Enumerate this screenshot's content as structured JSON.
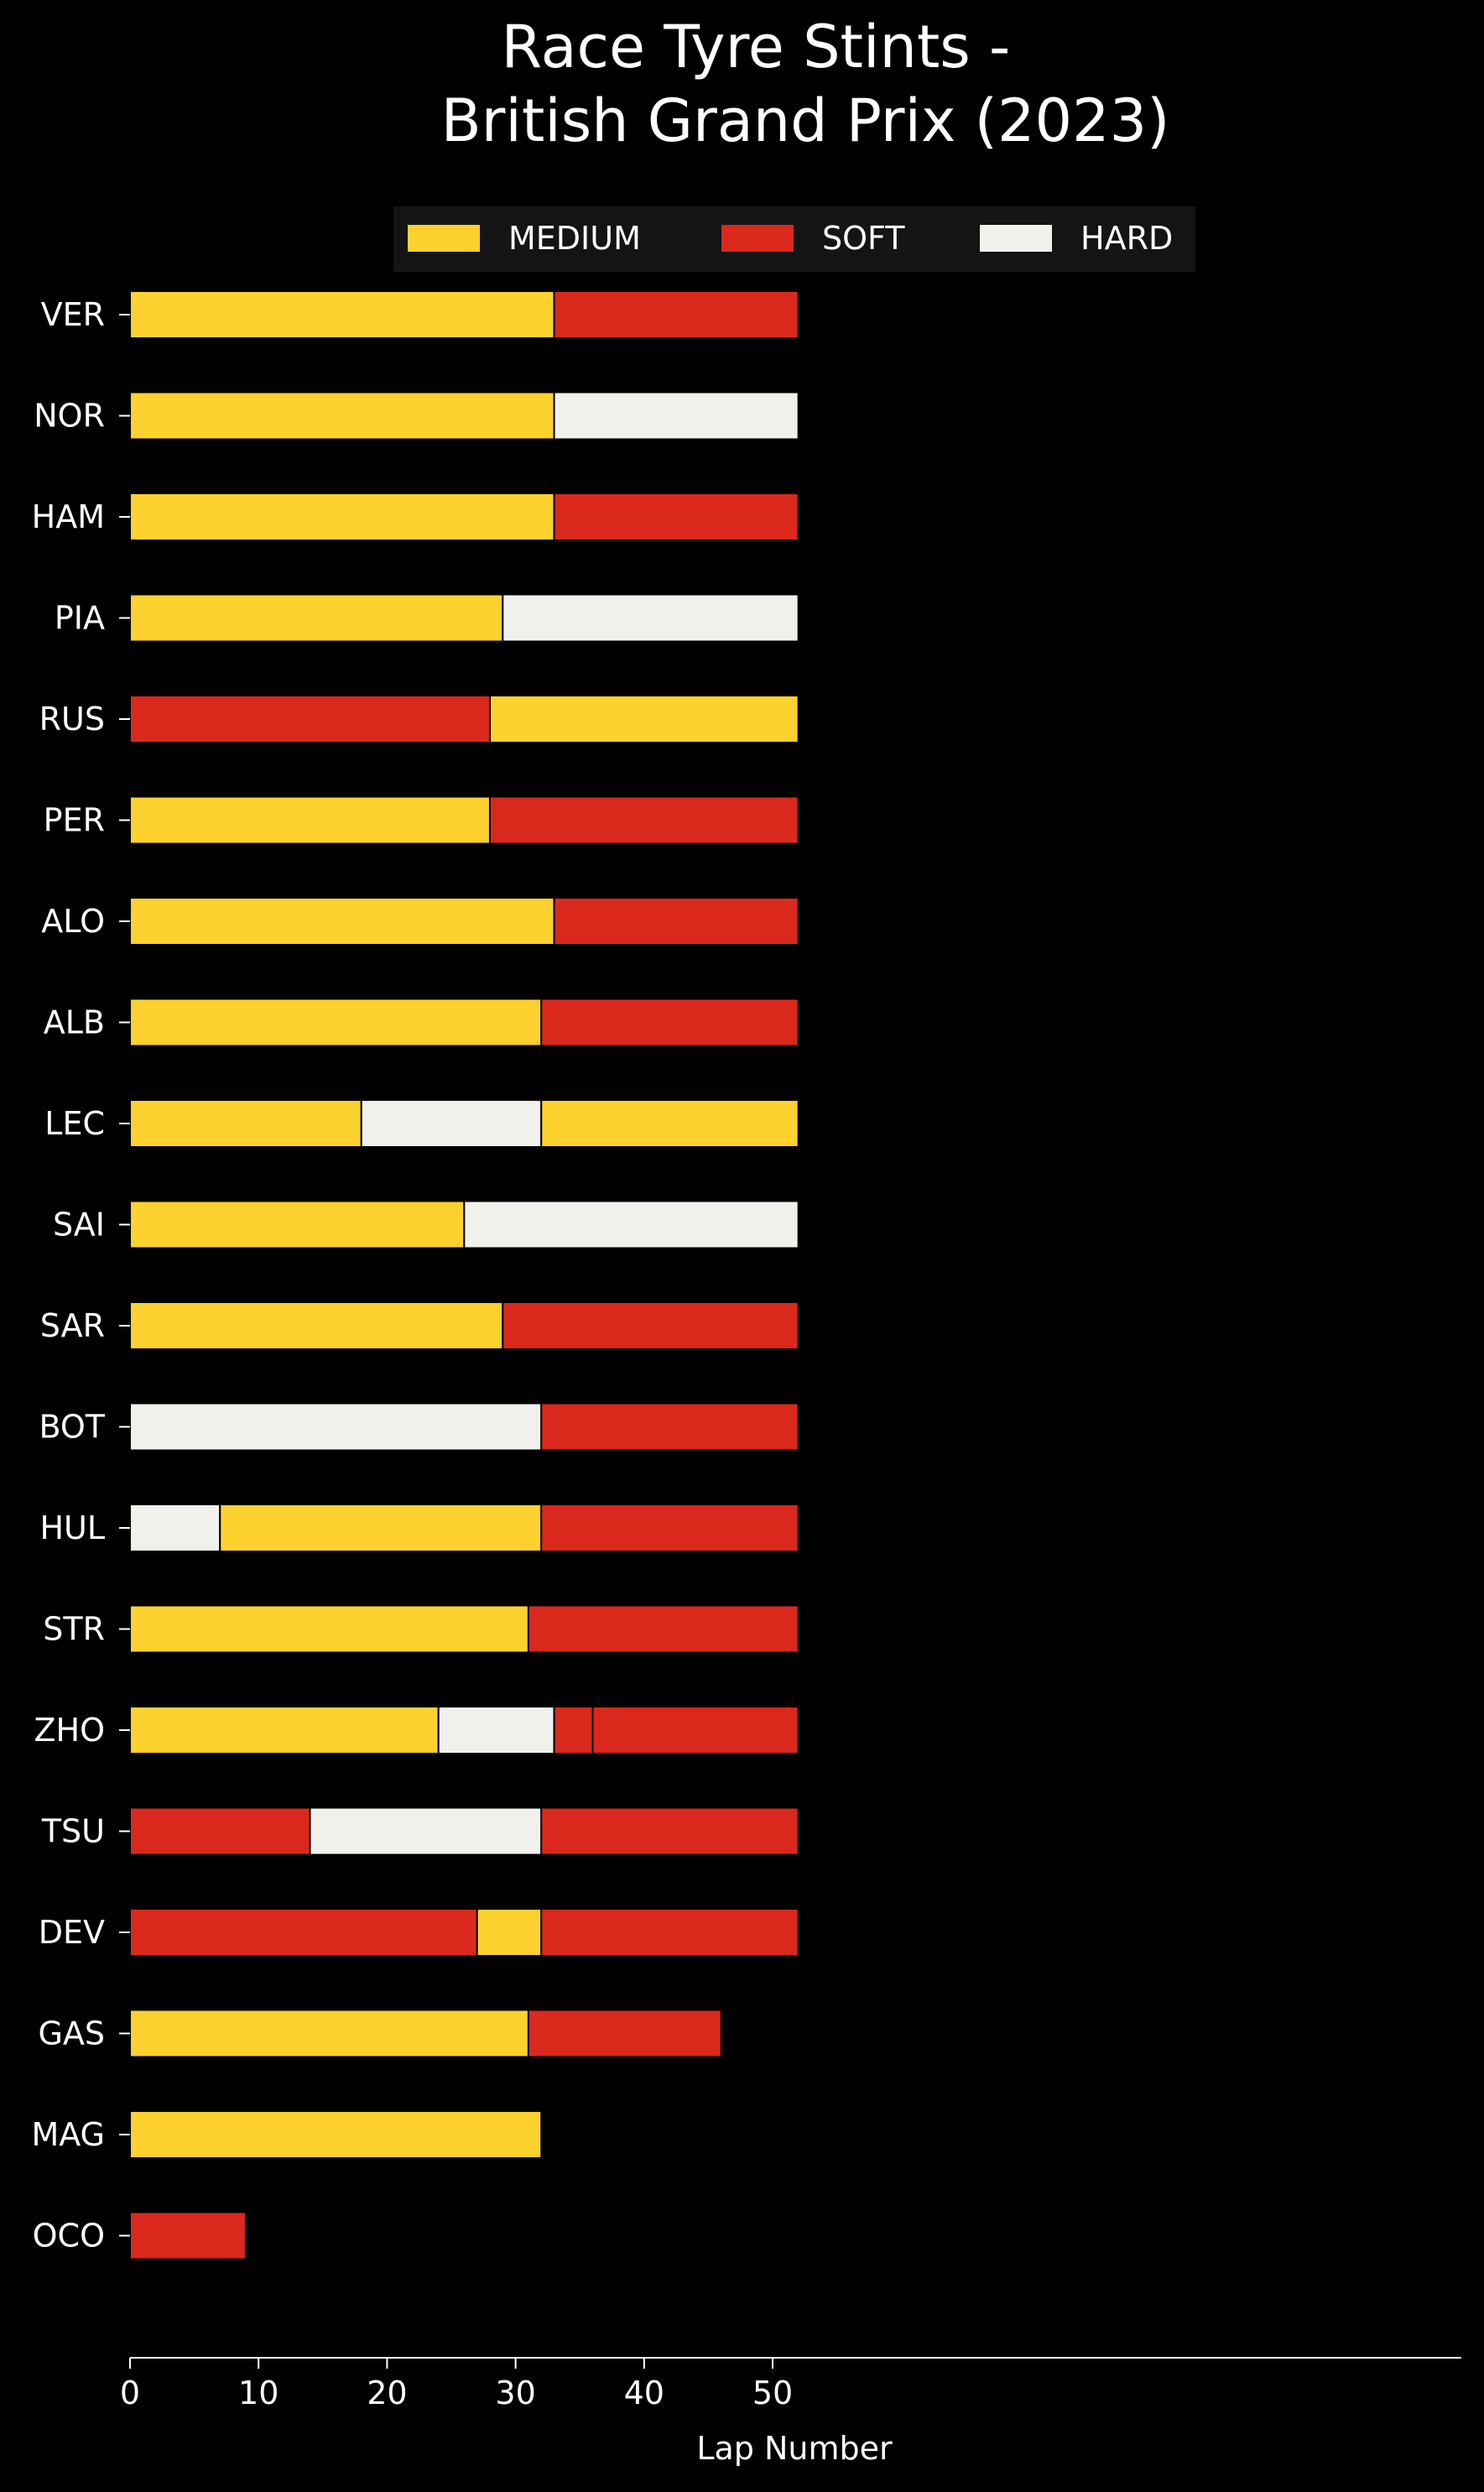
{
  "chart_data": {
    "type": "bar",
    "orientation": "horizontal",
    "stacked": true,
    "title": "Race Tyre Stints -\nBritish Grand Prix (2023)",
    "xlabel": "Lap Number",
    "ylabel": "",
    "xlim": [
      0,
      55
    ],
    "xticks": [
      0,
      10,
      20,
      30,
      40,
      50
    ],
    "grid": false,
    "legend": {
      "placement": "top-center",
      "entries": [
        "MEDIUM",
        "SOFT",
        "HARD"
      ]
    },
    "compound_colors": {
      "MEDIUM": "#fdd12e",
      "SOFT": "#da291c",
      "HARD": "#f0f0ec"
    },
    "background": "#000000",
    "drivers": [
      {
        "driver": "VER",
        "stints": [
          {
            "compound": "MEDIUM",
            "start": 0,
            "end": 33
          },
          {
            "compound": "SOFT",
            "start": 33,
            "end": 52
          }
        ]
      },
      {
        "driver": "NOR",
        "stints": [
          {
            "compound": "MEDIUM",
            "start": 0,
            "end": 33
          },
          {
            "compound": "HARD",
            "start": 33,
            "end": 52
          }
        ]
      },
      {
        "driver": "HAM",
        "stints": [
          {
            "compound": "MEDIUM",
            "start": 0,
            "end": 33
          },
          {
            "compound": "SOFT",
            "start": 33,
            "end": 52
          }
        ]
      },
      {
        "driver": "PIA",
        "stints": [
          {
            "compound": "MEDIUM",
            "start": 0,
            "end": 29
          },
          {
            "compound": "HARD",
            "start": 29,
            "end": 52
          }
        ]
      },
      {
        "driver": "RUS",
        "stints": [
          {
            "compound": "SOFT",
            "start": 0,
            "end": 28
          },
          {
            "compound": "MEDIUM",
            "start": 28,
            "end": 52
          }
        ]
      },
      {
        "driver": "PER",
        "stints": [
          {
            "compound": "MEDIUM",
            "start": 0,
            "end": 28
          },
          {
            "compound": "SOFT",
            "start": 28,
            "end": 52
          }
        ]
      },
      {
        "driver": "ALO",
        "stints": [
          {
            "compound": "MEDIUM",
            "start": 0,
            "end": 33
          },
          {
            "compound": "SOFT",
            "start": 33,
            "end": 52
          }
        ]
      },
      {
        "driver": "ALB",
        "stints": [
          {
            "compound": "MEDIUM",
            "start": 0,
            "end": 32
          },
          {
            "compound": "SOFT",
            "start": 32,
            "end": 52
          }
        ]
      },
      {
        "driver": "LEC",
        "stints": [
          {
            "compound": "MEDIUM",
            "start": 0,
            "end": 18
          },
          {
            "compound": "HARD",
            "start": 18,
            "end": 32
          },
          {
            "compound": "MEDIUM",
            "start": 32,
            "end": 52
          }
        ]
      },
      {
        "driver": "SAI",
        "stints": [
          {
            "compound": "MEDIUM",
            "start": 0,
            "end": 26
          },
          {
            "compound": "HARD",
            "start": 26,
            "end": 52
          }
        ]
      },
      {
        "driver": "SAR",
        "stints": [
          {
            "compound": "MEDIUM",
            "start": 0,
            "end": 29
          },
          {
            "compound": "SOFT",
            "start": 29,
            "end": 52
          }
        ]
      },
      {
        "driver": "BOT",
        "stints": [
          {
            "compound": "HARD",
            "start": 0,
            "end": 32
          },
          {
            "compound": "SOFT",
            "start": 32,
            "end": 52
          }
        ]
      },
      {
        "driver": "HUL",
        "stints": [
          {
            "compound": "HARD",
            "start": 0,
            "end": 7
          },
          {
            "compound": "MEDIUM",
            "start": 7,
            "end": 32
          },
          {
            "compound": "SOFT",
            "start": 32,
            "end": 52
          }
        ]
      },
      {
        "driver": "STR",
        "stints": [
          {
            "compound": "MEDIUM",
            "start": 0,
            "end": 31
          },
          {
            "compound": "SOFT",
            "start": 31,
            "end": 52
          }
        ]
      },
      {
        "driver": "ZHO",
        "stints": [
          {
            "compound": "MEDIUM",
            "start": 0,
            "end": 24
          },
          {
            "compound": "HARD",
            "start": 24,
            "end": 33
          },
          {
            "compound": "SOFT",
            "start": 33,
            "end": 36
          },
          {
            "compound": "SOFT",
            "start": 36,
            "end": 52
          }
        ]
      },
      {
        "driver": "TSU",
        "stints": [
          {
            "compound": "SOFT",
            "start": 0,
            "end": 14
          },
          {
            "compound": "HARD",
            "start": 14,
            "end": 32
          },
          {
            "compound": "SOFT",
            "start": 32,
            "end": 52
          }
        ]
      },
      {
        "driver": "DEV",
        "stints": [
          {
            "compound": "SOFT",
            "start": 0,
            "end": 27
          },
          {
            "compound": "MEDIUM",
            "start": 27,
            "end": 32
          },
          {
            "compound": "SOFT",
            "start": 32,
            "end": 52
          }
        ]
      },
      {
        "driver": "GAS",
        "stints": [
          {
            "compound": "MEDIUM",
            "start": 0,
            "end": 31
          },
          {
            "compound": "SOFT",
            "start": 31,
            "end": 46
          }
        ]
      },
      {
        "driver": "MAG",
        "stints": [
          {
            "compound": "MEDIUM",
            "start": 0,
            "end": 32
          }
        ]
      },
      {
        "driver": "OCO",
        "stints": [
          {
            "compound": "SOFT",
            "start": 0,
            "end": 9
          }
        ]
      }
    ]
  }
}
